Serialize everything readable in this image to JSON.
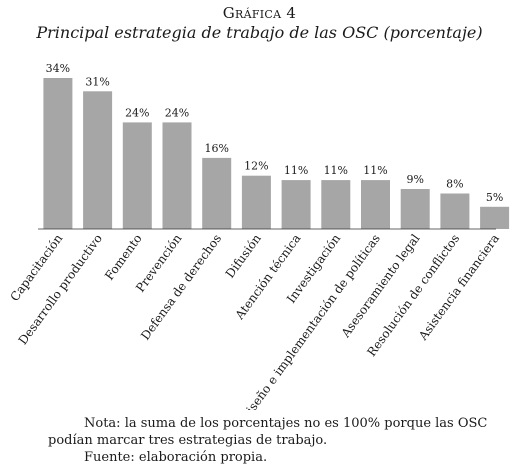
{
  "header": {
    "label": "Gráfica 4",
    "title": "Principal estrategia de trabajo de las OSC (porcentaje)"
  },
  "chart_data": {
    "type": "bar",
    "categories": [
      "Capacitación",
      "Desarrollo productivo",
      "Fomento",
      "Prevención",
      "Defensa de derechos",
      "Difusión",
      "Atención técnica",
      "Investigación",
      "Diseño e implementación de políticas",
      "Asesoramiento legal",
      "Resolución de conflictos",
      "Asistencia financiera"
    ],
    "values": [
      34,
      31,
      24,
      24,
      16,
      12,
      11,
      11,
      11,
      9,
      8,
      5
    ],
    "value_labels": [
      "34%",
      "31%",
      "24%",
      "24%",
      "16%",
      "12%",
      "11%",
      "11%",
      "11%",
      "9%",
      "8%",
      "5%"
    ],
    "ylim": [
      0,
      34
    ],
    "bar_color": "#a6a6a6",
    "grid": false,
    "legend": "none"
  },
  "footer": {
    "note_line1": "Nota: la suma de los porcentajes no es 100% porque las OSC",
    "note_line2": "podían marcar tres estrategias de trabajo.",
    "source": "Fuente: elaboración propia."
  }
}
